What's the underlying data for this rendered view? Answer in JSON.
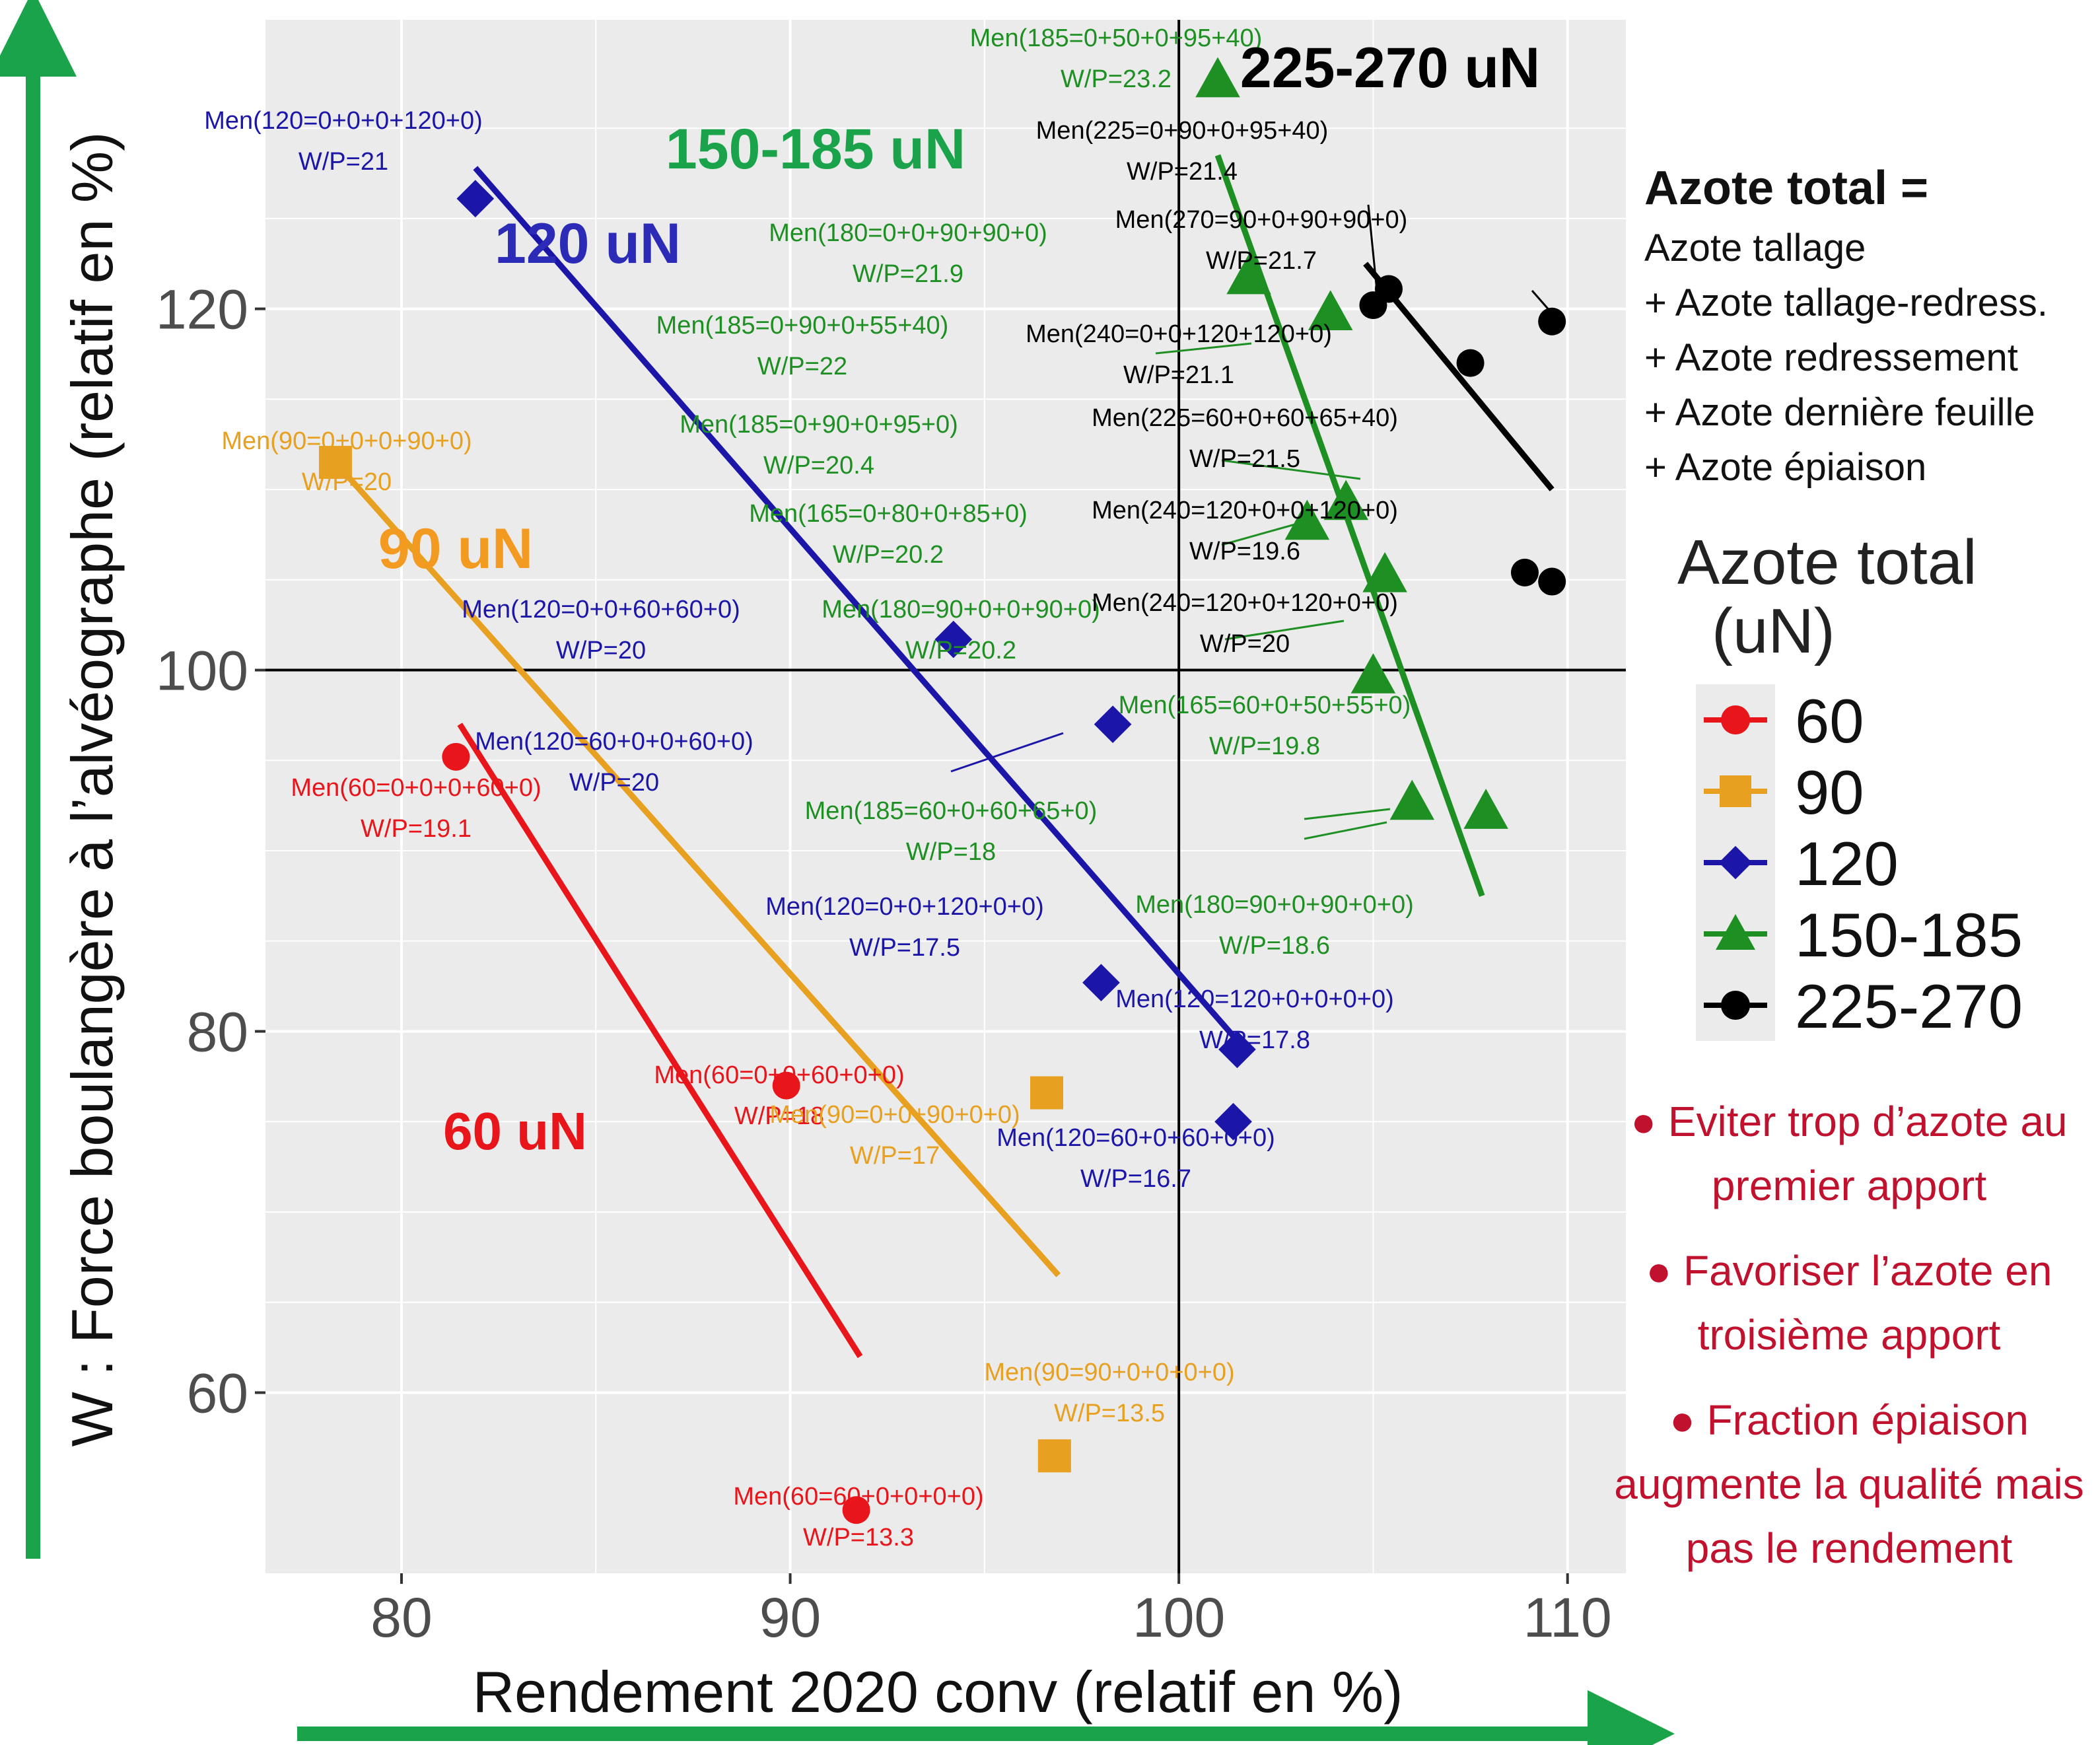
{
  "chart_data": {
    "type": "scatter",
    "xlabel": "Rendement 2020 conv (relatif en %)",
    "ylabel": "W : Force boulangère à l’alvéographe (relatif en %)",
    "xlim": [
      76.5,
      111.5
    ],
    "ylim": [
      50,
      136
    ],
    "xticks": [
      80,
      90,
      100,
      110
    ],
    "yticks": [
      60,
      80,
      100,
      120
    ],
    "xtick_labels": [
      "80",
      "90",
      "100",
      "110"
    ],
    "ytick_labels": [
      "60",
      "80",
      "100",
      "120"
    ],
    "reference_lines": {
      "x": 100,
      "y": 100
    },
    "grid": true,
    "legend_position": "right",
    "legend_title": [
      "Azote total",
      "(uN)"
    ],
    "legend_entries": [
      "60",
      "90",
      "120",
      "150-185",
      "225-270"
    ],
    "series": [
      {
        "name": "60",
        "color": "#e8151b",
        "marker": "circle",
        "group_label": "60 uN",
        "trend": [
          [
            81.5,
            97
          ],
          [
            91.8,
            62
          ]
        ],
        "points": [
          {
            "x": 81.4,
            "y": 95.2,
            "label": "Men(60=0+0+0+60+0)",
            "wp": "W/P=19.1"
          },
          {
            "x": 89.9,
            "y": 77.0,
            "label": "Men(60=0+0+60+0+0)",
            "wp": "W/P=18"
          },
          {
            "x": 91.7,
            "y": 53.5,
            "label": "Men(60=60+0+0+0+0)",
            "wp": "W/P=13.3"
          }
        ]
      },
      {
        "name": "90",
        "color": "#e8a020",
        "marker": "square",
        "group_label": "90 uN",
        "trend": [
          [
            78.3,
            111.5
          ],
          [
            96.9,
            66.5
          ]
        ],
        "points": [
          {
            "x": 78.3,
            "y": 111.5,
            "label": "Men(90=0+0+0+90+0)",
            "wp": "W/P=20"
          },
          {
            "x": 96.6,
            "y": 76.6,
            "label": "Men(90=0+0+90+0+0)",
            "wp": "W/P=17"
          },
          {
            "x": 96.8,
            "y": 56.5,
            "label": "Men(90=90+0+0+0+0)",
            "wp": "W/P=13.5"
          }
        ]
      },
      {
        "name": "120",
        "color": "#1c16a8",
        "marker": "diamond",
        "group_label": "120 uN",
        "trend": [
          [
            81.9,
            127.8
          ],
          [
            101.7,
            79
          ]
        ],
        "points": [
          {
            "x": 81.9,
            "y": 126.1,
            "label": "Men(120=0+0+0+120+0)",
            "wp": "W/P=21"
          },
          {
            "x": 94.2,
            "y": 101.7,
            "label": "Men(120=0+0+60+60+0)",
            "wp": "W/P=20"
          },
          {
            "x": 98.3,
            "y": 97.0,
            "label": "Men(120=60+0+0+60+0)",
            "wp": "W/P=20"
          },
          {
            "x": 98.0,
            "y": 82.7,
            "label": "Men(120=0+0+120+0+0)",
            "wp": "W/P=17.5"
          },
          {
            "x": 101.5,
            "y": 79.0,
            "label": "Men(120=120+0+0+0+0)",
            "wp": "W/P=17.8"
          },
          {
            "x": 101.4,
            "y": 75.0,
            "label": "Men(120=60+0+60+0+0)",
            "wp": "W/P=16.7"
          }
        ]
      },
      {
        "name": "150-185",
        "color": "#1e8f22",
        "marker": "triangle",
        "group_label": "150-185 uN",
        "trend": [
          [
            101.0,
            128.5
          ],
          [
            107.8,
            87.5
          ]
        ],
        "points": [
          {
            "x": 101.0,
            "y": 132.7,
            "label": "Men(185=0+50+0+95+40)",
            "wp": "W/P=23.2"
          },
          {
            "x": 101.8,
            "y": 121.8,
            "label": "Men(180=0+0+90+90+0)",
            "wp": "W/P=21.9"
          },
          {
            "x": 103.9,
            "y": 119.8,
            "label": "Men(185=0+90+0+55+40)",
            "wp": "W/P=22"
          },
          {
            "x": 104.3,
            "y": 109.3,
            "label": "Men(185=0+90+0+95+0)",
            "wp": "W/P=20.4"
          },
          {
            "x": 103.3,
            "y": 108.2,
            "label": "Men(165=0+80+0+85+0)",
            "wp": "W/P=20.2"
          },
          {
            "x": 105.3,
            "y": 105.3,
            "label": "Men(180=90+0+0+90+0)",
            "wp": "W/P=20.2"
          },
          {
            "x": 105.0,
            "y": 99.7,
            "label": "Men(165=60+0+50+55+0)",
            "wp": "W/P=19.8"
          },
          {
            "x": 106.0,
            "y": 92.7,
            "label": "Men(185=60+0+60+65+0)",
            "wp": "W/P=18"
          },
          {
            "x": 107.9,
            "y": 92.2,
            "label": "Men(180=90+0+90+0+0)",
            "wp": "W/P=18.6"
          }
        ]
      },
      {
        "name": "225-270",
        "color": "#000000",
        "marker": "circle",
        "group_label": "225-270 uN",
        "trend": [
          [
            104.8,
            122.5
          ],
          [
            109.6,
            110
          ]
        ],
        "points": [
          {
            "x": 105.0,
            "y": 120.2,
            "label": "Men(225=0+90+0+95+40)",
            "wp": "W/P=21.4"
          },
          {
            "x": 105.4,
            "y": 121.1,
            "label": "Men(270=90+0+90+90+0)",
            "wp": "W/P=21.7"
          },
          {
            "x": 109.6,
            "y": 119.3,
            "label": "Men(240=0+0+120+120+0)",
            "wp": "W/P=21.1"
          },
          {
            "x": 107.5,
            "y": 117.0,
            "label": "Men(225=60+0+60+65+40)",
            "wp": "W/P=21.5"
          },
          {
            "x": 108.9,
            "y": 105.4,
            "label": "Men(240=120+0+0+120+0)",
            "wp": "W/P=19.6"
          },
          {
            "x": 109.6,
            "y": 104.9,
            "label": "Men(240=120+0+120+0+0)",
            "wp": "W/P=20"
          }
        ]
      }
    ]
  },
  "definition": {
    "title": "Azote total =",
    "lines": [
      "Azote tallage",
      "+ Azote tallage-redress.",
      "+ Azote redressement",
      "+ Azote dernière feuille",
      "+ Azote épiaison"
    ]
  },
  "advice": [
    "● Eviter trop d’azote au premier apport",
    "● Favoriser l’azote en troisième apport",
    "● Fraction épiaison augmente la qualité mais pas le rendement"
  ],
  "colors": {
    "panel_bg": "#ebebeb",
    "grid": "#ffffff",
    "arrow": "#1aa34a",
    "advice": "#c0122e"
  }
}
